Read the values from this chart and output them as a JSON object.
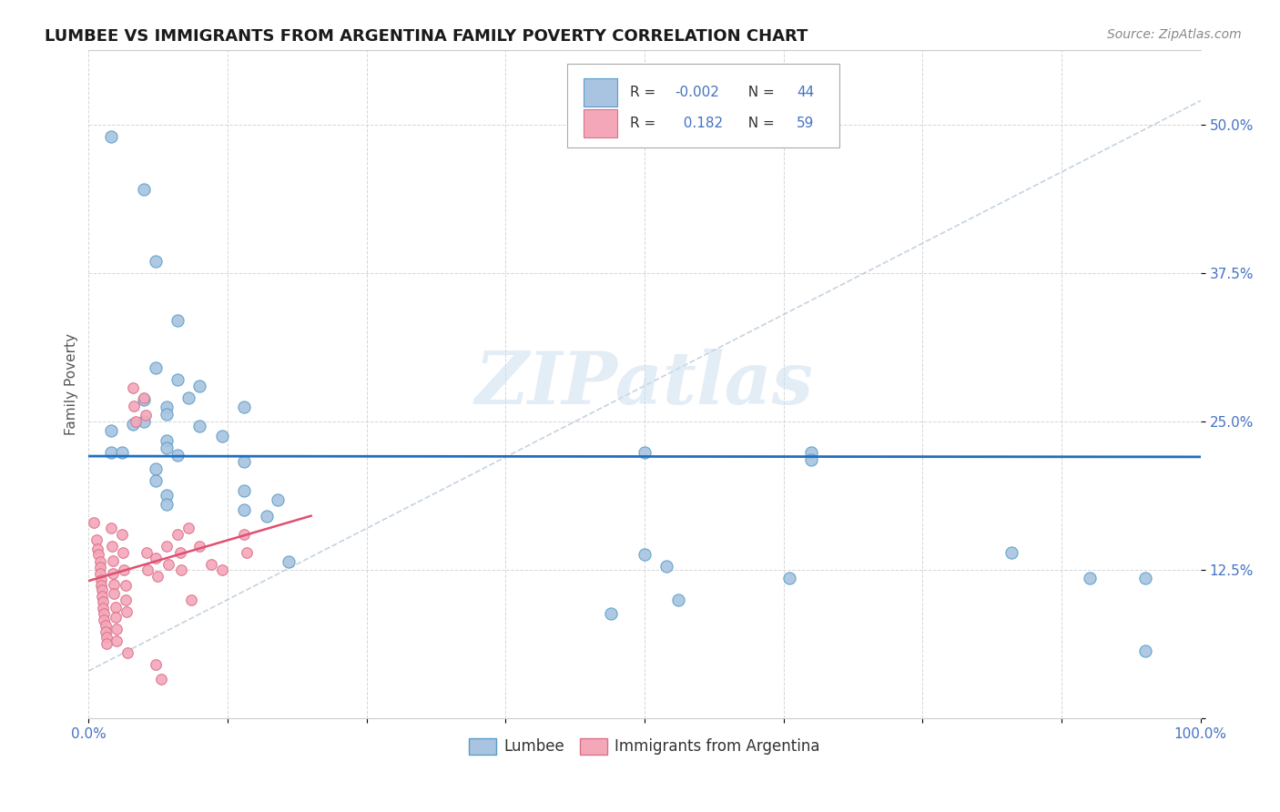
{
  "title": "LUMBEE VS IMMIGRANTS FROM ARGENTINA FAMILY POVERTY CORRELATION CHART",
  "source_text": "Source: ZipAtlas.com",
  "ylabel": "Family Poverty",
  "xlim": [
    0,
    1.0
  ],
  "ylim": [
    0,
    0.5625
  ],
  "xticks": [
    0.0,
    0.125,
    0.25,
    0.375,
    0.5,
    0.625,
    0.75,
    0.875,
    1.0
  ],
  "yticks": [
    0.0,
    0.125,
    0.25,
    0.375,
    0.5
  ],
  "ytick_labels": [
    "",
    "12.5%",
    "25.0%",
    "37.5%",
    "50.0%"
  ],
  "watermark_line1": "ZIP",
  "watermark_line2": "atlas",
  "lumbee_color": "#a8c4e0",
  "argentina_color": "#f4a7b9",
  "lumbee_edge": "#5b9dc9",
  "argentina_edge": "#d9728a",
  "lumbee_R": -0.002,
  "lumbee_N": 44,
  "argentina_R": 0.182,
  "argentina_N": 59,
  "lumbee_line_color": "#1f6fbf",
  "argentina_solid_color": "#e05070",
  "trend_line_color": "#b8c8d8",
  "legend_label_lumbee": "Lumbee",
  "legend_label_argentina": "Immigrants from Argentina",
  "background_color": "#ffffff",
  "grid_color": "#cccccc",
  "tick_color": "#4472c4",
  "text_color_blue": "#4472c4",
  "lumbee_scatter": [
    [
      0.02,
      0.49
    ],
    [
      0.05,
      0.445
    ],
    [
      0.06,
      0.385
    ],
    [
      0.08,
      0.335
    ],
    [
      0.06,
      0.295
    ],
    [
      0.08,
      0.285
    ],
    [
      0.1,
      0.28
    ],
    [
      0.09,
      0.27
    ],
    [
      0.05,
      0.268
    ],
    [
      0.07,
      0.262
    ],
    [
      0.14,
      0.262
    ],
    [
      0.07,
      0.256
    ],
    [
      0.05,
      0.25
    ],
    [
      0.04,
      0.248
    ],
    [
      0.1,
      0.246
    ],
    [
      0.02,
      0.242
    ],
    [
      0.12,
      0.238
    ],
    [
      0.07,
      0.234
    ],
    [
      0.07,
      0.228
    ],
    [
      0.02,
      0.224
    ],
    [
      0.03,
      0.224
    ],
    [
      0.08,
      0.222
    ],
    [
      0.5,
      0.224
    ],
    [
      0.65,
      0.224
    ],
    [
      0.14,
      0.216
    ],
    [
      0.06,
      0.21
    ],
    [
      0.06,
      0.2
    ],
    [
      0.14,
      0.192
    ],
    [
      0.07,
      0.188
    ],
    [
      0.17,
      0.184
    ],
    [
      0.07,
      0.18
    ],
    [
      0.14,
      0.176
    ],
    [
      0.16,
      0.17
    ],
    [
      0.5,
      0.138
    ],
    [
      0.18,
      0.132
    ],
    [
      0.52,
      0.128
    ],
    [
      0.83,
      0.14
    ],
    [
      0.95,
      0.118
    ],
    [
      0.53,
      0.1
    ],
    [
      0.47,
      0.088
    ],
    [
      0.65,
      0.218
    ],
    [
      0.9,
      0.118
    ],
    [
      0.95,
      0.057
    ],
    [
      0.63,
      0.118
    ]
  ],
  "argentina_scatter": [
    [
      0.005,
      0.165
    ],
    [
      0.007,
      0.15
    ],
    [
      0.008,
      0.143
    ],
    [
      0.009,
      0.138
    ],
    [
      0.01,
      0.132
    ],
    [
      0.01,
      0.127
    ],
    [
      0.01,
      0.122
    ],
    [
      0.011,
      0.117
    ],
    [
      0.011,
      0.112
    ],
    [
      0.012,
      0.108
    ],
    [
      0.012,
      0.103
    ],
    [
      0.013,
      0.098
    ],
    [
      0.013,
      0.093
    ],
    [
      0.014,
      0.088
    ],
    [
      0.014,
      0.083
    ],
    [
      0.015,
      0.078
    ],
    [
      0.015,
      0.073
    ],
    [
      0.016,
      0.068
    ],
    [
      0.016,
      0.063
    ],
    [
      0.02,
      0.16
    ],
    [
      0.021,
      0.145
    ],
    [
      0.022,
      0.133
    ],
    [
      0.022,
      0.122
    ],
    [
      0.023,
      0.113
    ],
    [
      0.023,
      0.105
    ],
    [
      0.024,
      0.094
    ],
    [
      0.024,
      0.085
    ],
    [
      0.025,
      0.075
    ],
    [
      0.025,
      0.065
    ],
    [
      0.03,
      0.155
    ],
    [
      0.031,
      0.14
    ],
    [
      0.032,
      0.125
    ],
    [
      0.033,
      0.112
    ],
    [
      0.033,
      0.1
    ],
    [
      0.034,
      0.09
    ],
    [
      0.035,
      0.055
    ],
    [
      0.04,
      0.278
    ],
    [
      0.041,
      0.263
    ],
    [
      0.042,
      0.25
    ],
    [
      0.05,
      0.27
    ],
    [
      0.051,
      0.255
    ],
    [
      0.052,
      0.14
    ],
    [
      0.053,
      0.125
    ],
    [
      0.06,
      0.135
    ],
    [
      0.062,
      0.12
    ],
    [
      0.07,
      0.145
    ],
    [
      0.072,
      0.13
    ],
    [
      0.08,
      0.155
    ],
    [
      0.082,
      0.14
    ],
    [
      0.083,
      0.125
    ],
    [
      0.09,
      0.16
    ],
    [
      0.092,
      0.1
    ],
    [
      0.1,
      0.145
    ],
    [
      0.11,
      0.13
    ],
    [
      0.12,
      0.125
    ],
    [
      0.14,
      0.155
    ],
    [
      0.142,
      0.14
    ],
    [
      0.06,
      0.045
    ],
    [
      0.065,
      0.033
    ]
  ]
}
